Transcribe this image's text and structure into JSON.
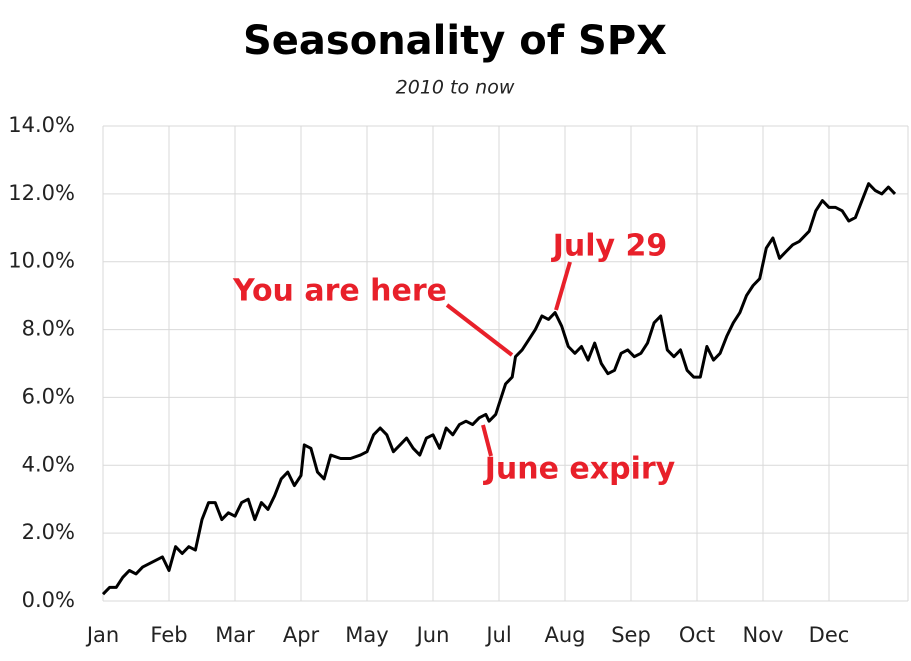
{
  "chart_data": {
    "type": "line",
    "title": "Seasonality of SPX",
    "subtitle": "2010 to now",
    "x": [
      0.0,
      0.1,
      0.2,
      0.3,
      0.4,
      0.5,
      0.6,
      0.7,
      0.8,
      0.9,
      1.0,
      1.1,
      1.2,
      1.3,
      1.4,
      1.5,
      1.6,
      1.7,
      1.8,
      1.9,
      2.0,
      2.1,
      2.2,
      2.3,
      2.4,
      2.5,
      2.6,
      2.7,
      2.8,
      2.9,
      3.0,
      3.05,
      3.15,
      3.25,
      3.35,
      3.45,
      3.6,
      3.75,
      3.9,
      4.0,
      4.1,
      4.2,
      4.3,
      4.4,
      4.5,
      4.6,
      4.7,
      4.8,
      4.9,
      5.0,
      5.1,
      5.2,
      5.3,
      5.4,
      5.5,
      5.6,
      5.7,
      5.8,
      5.85,
      5.95,
      6.0,
      6.1,
      6.2,
      6.25,
      6.35,
      6.45,
      6.55,
      6.65,
      6.75,
      6.85,
      6.95,
      7.05,
      7.15,
      7.25,
      7.35,
      7.45,
      7.55,
      7.65,
      7.75,
      7.85,
      7.95,
      8.05,
      8.15,
      8.25,
      8.35,
      8.45,
      8.55,
      8.65,
      8.75,
      8.85,
      8.95,
      9.05,
      9.15,
      9.25,
      9.35,
      9.45,
      9.55,
      9.65,
      9.75,
      9.85,
      9.95,
      10.05,
      10.15,
      10.25,
      10.35,
      10.45,
      10.55,
      10.7,
      10.8,
      10.9,
      11.0,
      11.1,
      11.2,
      11.3,
      11.4,
      11.5,
      11.6,
      11.7,
      11.8,
      11.9,
      12.0
    ],
    "series": [
      {
        "name": "SPX",
        "color": "#000000",
        "values": [
          0.2,
          0.4,
          0.4,
          0.7,
          0.9,
          0.8,
          1.0,
          1.1,
          1.2,
          1.3,
          0.9,
          1.6,
          1.4,
          1.6,
          1.5,
          2.4,
          2.9,
          2.9,
          2.4,
          2.6,
          2.5,
          2.9,
          3.0,
          2.4,
          2.9,
          2.7,
          3.1,
          3.6,
          3.8,
          3.4,
          3.7,
          4.6,
          4.5,
          3.8,
          3.6,
          4.3,
          4.2,
          4.2,
          4.3,
          4.4,
          4.9,
          5.1,
          4.9,
          4.4,
          4.6,
          4.8,
          4.5,
          4.3,
          4.8,
          4.9,
          4.5,
          5.1,
          4.9,
          5.2,
          5.3,
          5.2,
          5.4,
          5.5,
          5.3,
          5.5,
          5.8,
          6.4,
          6.6,
          7.2,
          7.4,
          7.7,
          8.0,
          8.4,
          8.3,
          8.5,
          8.1,
          7.5,
          7.3,
          7.5,
          7.1,
          7.6,
          7.0,
          6.7,
          6.8,
          7.3,
          7.4,
          7.2,
          7.3,
          7.6,
          8.2,
          8.4,
          7.4,
          7.2,
          7.4,
          6.8,
          6.6,
          6.6,
          7.5,
          7.1,
          7.3,
          7.8,
          8.2,
          8.5,
          9.0,
          9.3,
          9.5,
          10.4,
          10.7,
          10.1,
          10.3,
          10.5,
          10.6,
          10.9,
          11.5,
          11.8,
          11.6,
          11.6,
          11.5,
          11.2,
          11.3,
          11.8,
          12.3,
          12.1,
          12.0,
          12.2,
          12.0
        ]
      }
    ],
    "xlim": [
      0,
      12
    ],
    "xticks": [
      {
        "value": 0,
        "label": "Jan"
      },
      {
        "value": 1,
        "label": "Feb"
      },
      {
        "value": 2,
        "label": "Mar"
      },
      {
        "value": 3,
        "label": "Apr"
      },
      {
        "value": 4,
        "label": "May"
      },
      {
        "value": 5,
        "label": "Jun"
      },
      {
        "value": 6,
        "label": "Jul"
      },
      {
        "value": 7,
        "label": "Aug"
      },
      {
        "value": 8,
        "label": "Sep"
      },
      {
        "value": 9,
        "label": "Oct"
      },
      {
        "value": 10,
        "label": "Nov"
      },
      {
        "value": 11,
        "label": "Dec"
      }
    ],
    "ylim": [
      0,
      14
    ],
    "yticks": [
      {
        "value": 0,
        "label": "0.0%"
      },
      {
        "value": 2,
        "label": "2.0%"
      },
      {
        "value": 4,
        "label": "4.0%"
      },
      {
        "value": 6,
        "label": "6.0%"
      },
      {
        "value": 8,
        "label": "8.0%"
      },
      {
        "value": 10,
        "label": "10.0%"
      },
      {
        "value": 12,
        "label": "12.0%"
      },
      {
        "value": 14,
        "label": "14.0%"
      }
    ],
    "grid": true,
    "annotations": [
      {
        "text": "You are here"
      },
      {
        "text": "July 29"
      },
      {
        "text": "June expiry"
      }
    ],
    "annotation_color": "#e8202a"
  }
}
